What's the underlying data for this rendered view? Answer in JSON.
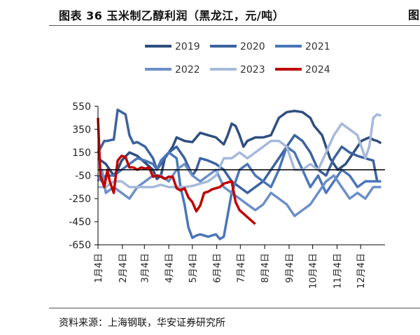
{
  "header": {
    "title": "图表 36  玉米制乙醇利润（黑龙江，元/吨）",
    "edge_glyph": "图"
  },
  "footer": {
    "source": "资料来源：上海钢联，华安证券研究所"
  },
  "chart_data": {
    "type": "line",
    "title": "图表 36  玉米制乙醇利润（黑龙江，元/吨）",
    "xlabel": "",
    "ylabel": "",
    "ylim": [
      -650,
      550
    ],
    "yticks": [
      550,
      350,
      150,
      -50,
      -250,
      -450,
      -650
    ],
    "xlim": [
      0,
      365
    ],
    "x_unit": "day of year",
    "x_tick_positions": [
      0,
      31,
      59,
      90,
      120,
      151,
      181,
      212,
      243,
      273,
      304,
      334
    ],
    "x_tick_labels": [
      "1月4日",
      "2月4日",
      "3月4日",
      "4月4日",
      "5月4日",
      "6月4日",
      "7月4日",
      "8月4日",
      "9月4日",
      "10月4日",
      "11月4日",
      "12月4日"
    ],
    "legend_position": "top",
    "grid": false,
    "series": [
      {
        "name": "2019",
        "color": "#2e4f7f",
        "width": 3.5,
        "x": [
          0,
          10,
          20,
          25,
          30,
          40,
          50,
          60,
          70,
          75,
          80,
          85,
          95,
          100,
          110,
          120,
          130,
          140,
          150,
          160,
          165,
          170,
          175,
          180,
          185,
          190,
          200,
          210,
          220,
          230,
          240,
          250,
          260,
          270,
          275,
          285,
          295,
          305,
          315,
          325,
          335,
          345,
          350,
          355,
          360
        ],
        "y": [
          100,
          50,
          -50,
          0,
          80,
          150,
          120,
          60,
          0,
          -80,
          -50,
          100,
          200,
          280,
          250,
          240,
          320,
          300,
          280,
          220,
          300,
          400,
          380,
          300,
          200,
          250,
          280,
          280,
          300,
          450,
          500,
          510,
          500,
          450,
          380,
          300,
          100,
          0,
          50,
          150,
          250,
          280,
          260,
          250,
          230
        ]
      },
      {
        "name": "2020",
        "color": "#3b62a0",
        "width": 3.5,
        "x": [
          0,
          8,
          12,
          18,
          20,
          25,
          35,
          40,
          45,
          50,
          60,
          70,
          75,
          80,
          90,
          100,
          110,
          120,
          125,
          130,
          140,
          150,
          160,
          170,
          180,
          190,
          200,
          210,
          220,
          230,
          240,
          250,
          260,
          270,
          280,
          290,
          300,
          310,
          320,
          330,
          340,
          350,
          355,
          360
        ],
        "y": [
          150,
          250,
          250,
          260,
          260,
          520,
          480,
          300,
          230,
          240,
          200,
          100,
          0,
          50,
          150,
          200,
          100,
          -50,
          0,
          100,
          80,
          50,
          0,
          -100,
          -150,
          -200,
          -150,
          -100,
          0,
          100,
          200,
          300,
          250,
          150,
          0,
          -50,
          100,
          200,
          150,
          120,
          100,
          80,
          -100,
          -100
        ]
      },
      {
        "name": "2021",
        "color": "#4a76b8",
        "width": 3.5,
        "x": [
          0,
          5,
          10,
          20,
          30,
          40,
          50,
          60,
          70,
          75,
          80,
          90,
          100,
          105,
          110,
          115,
          120,
          125,
          130,
          140,
          150,
          155,
          160,
          170,
          180,
          190,
          200,
          210,
          220,
          230,
          240,
          250,
          260,
          270,
          280,
          290,
          300,
          310,
          320,
          330,
          340,
          350,
          360
        ],
        "y": [
          -50,
          -100,
          -50,
          -50,
          0,
          50,
          100,
          80,
          50,
          0,
          80,
          150,
          100,
          -150,
          -300,
          -500,
          -590,
          -570,
          -560,
          -580,
          -560,
          -600,
          -580,
          -200,
          0,
          50,
          -50,
          -100,
          -150,
          0,
          200,
          150,
          0,
          -150,
          -50,
          -200,
          -100,
          0,
          -50,
          -150,
          -100,
          -100,
          -100
        ]
      },
      {
        "name": "2022",
        "color": "#6b8fc9",
        "width": 3.5,
        "x": [
          0,
          5,
          10,
          20,
          30,
          40,
          50,
          60,
          70,
          80,
          90,
          100,
          110,
          120,
          130,
          140,
          150,
          160,
          170,
          180,
          190,
          200,
          210,
          220,
          230,
          240,
          250,
          260,
          270,
          280,
          290,
          300,
          310,
          320,
          330,
          340,
          350,
          360
        ],
        "y": [
          -100,
          0,
          -200,
          -150,
          -200,
          -250,
          -150,
          -100,
          -50,
          -50,
          -100,
          0,
          50,
          -50,
          -100,
          -50,
          0,
          -150,
          -200,
          -250,
          -300,
          -350,
          -300,
          -200,
          -250,
          -300,
          -400,
          -350,
          -300,
          -200,
          -100,
          -50,
          -150,
          -250,
          -200,
          -250,
          -150,
          -150
        ]
      },
      {
        "name": "2023",
        "color": "#a5b9db",
        "width": 3.5,
        "x": [
          0,
          10,
          20,
          30,
          40,
          50,
          60,
          70,
          80,
          90,
          100,
          110,
          120,
          130,
          140,
          150,
          160,
          170,
          180,
          190,
          200,
          210,
          220,
          230,
          240,
          250,
          260,
          270,
          280,
          290,
          300,
          310,
          320,
          330,
          340,
          345,
          350,
          355,
          360
        ],
        "y": [
          -150,
          -150,
          -100,
          -100,
          -150,
          -150,
          -150,
          -150,
          -130,
          -150,
          -150,
          -150,
          -140,
          -120,
          -100,
          -50,
          100,
          100,
          150,
          100,
          150,
          200,
          250,
          250,
          200,
          0,
          0,
          50,
          0,
          150,
          300,
          400,
          350,
          300,
          100,
          200,
          450,
          480,
          470
        ]
      },
      {
        "name": "2024",
        "color": "#c00000",
        "width": 3.5,
        "x": [
          0,
          3,
          8,
          12,
          15,
          20,
          25,
          30,
          35,
          40,
          45,
          50,
          55,
          60,
          65,
          70,
          75,
          80,
          85,
          90,
          95,
          100,
          105,
          110,
          115,
          120,
          125,
          130,
          135,
          140,
          145,
          150,
          155,
          160,
          165,
          170,
          175,
          180,
          185,
          190,
          195,
          200
        ],
        "y": [
          450,
          -50,
          -150,
          0,
          -100,
          -200,
          80,
          120,
          110,
          20,
          20,
          0,
          20,
          10,
          20,
          -60,
          -50,
          -60,
          -80,
          -60,
          -60,
          -160,
          -180,
          -160,
          -240,
          -280,
          -360,
          -310,
          -200,
          -190,
          -170,
          -160,
          -150,
          -120,
          -110,
          -100,
          -280,
          -350,
          -380,
          -410,
          -440,
          -470
        ]
      }
    ]
  }
}
